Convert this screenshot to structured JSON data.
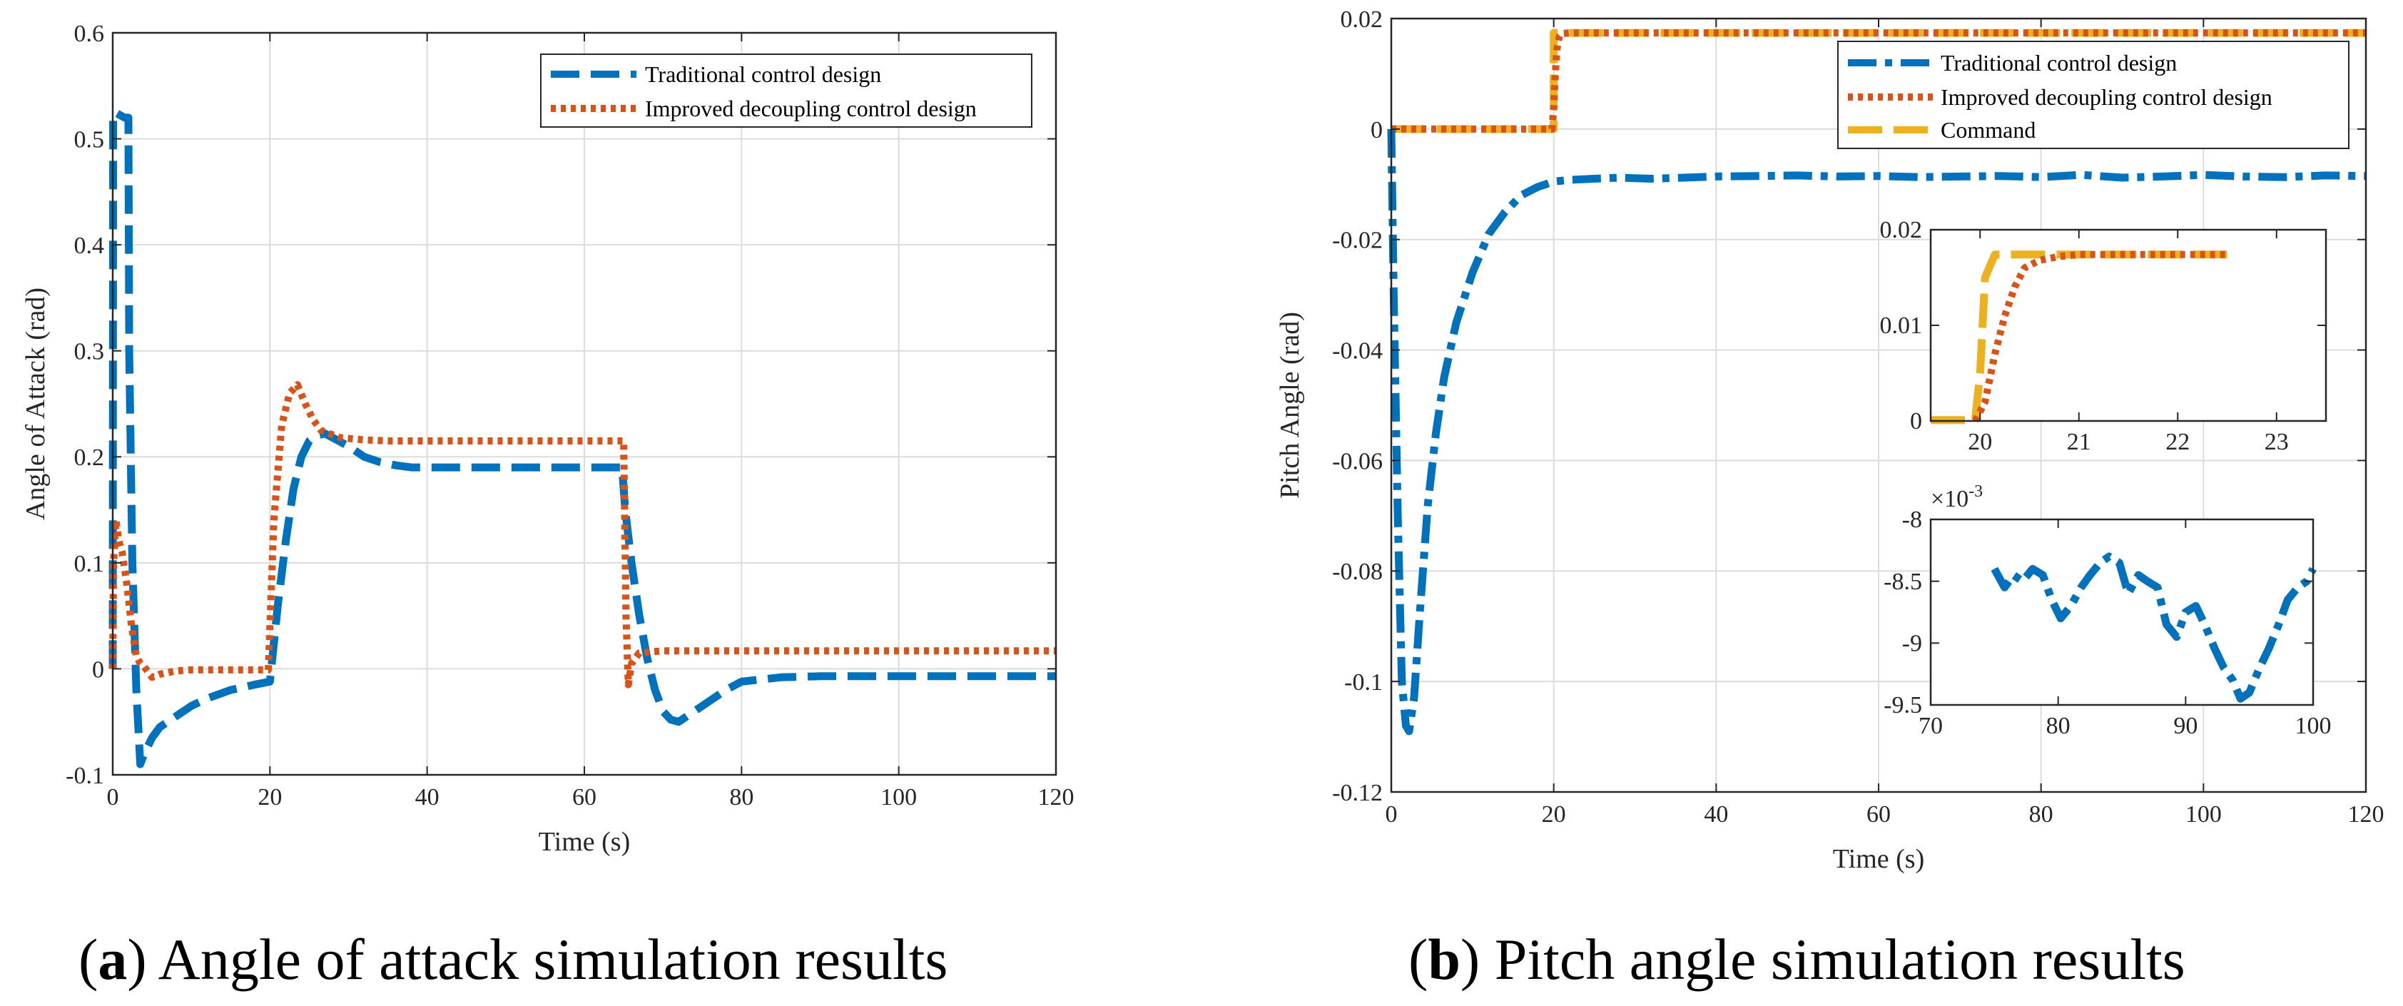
{
  "colors": {
    "traditional": "#0072BD",
    "improved": "#D95319",
    "command": "#EDB120"
  },
  "chart_data": [
    {
      "id": "a",
      "type": "line",
      "caption_letter": "a",
      "caption_text": ") Angle of attack simulation results",
      "caption_open": "(",
      "xlabel": "Time (s)",
      "ylabel": "Angle of Attack (rad)",
      "xlim": [
        0,
        120
      ],
      "ylim": [
        -0.1,
        0.6
      ],
      "xticks": [
        0,
        20,
        40,
        60,
        80,
        100,
        120
      ],
      "yticks": [
        -0.1,
        0,
        0.1,
        0.2,
        0.3,
        0.4,
        0.5,
        0.6
      ],
      "ytick_labels": [
        "-0.1",
        "0",
        "0.1",
        "0.2",
        "0.3",
        "0.4",
        "0.5",
        "0.6"
      ],
      "grid": true,
      "legend_position": "top-right",
      "series": [
        {
          "name": "Traditional control design",
          "style": "dashed-thick",
          "color": "traditional",
          "x": [
            0,
            0.05,
            0.3,
            1.5,
            2.0,
            2.1,
            2.5,
            3.0,
            3.5,
            4.0,
            5,
            6,
            8,
            10,
            12,
            15,
            18,
            20,
            21,
            22,
            23,
            24,
            25,
            26,
            27,
            28,
            30,
            32,
            34,
            36,
            38,
            40,
            45,
            50,
            55,
            60,
            64.8,
            65.2,
            66,
            67,
            68,
            69,
            70,
            71,
            72,
            73,
            75,
            78,
            80,
            85,
            90,
            100,
            110,
            120
          ],
          "y": [
            0,
            0.52,
            0.525,
            0.52,
            0.52,
            0.3,
            0.1,
            -0.02,
            -0.09,
            -0.08,
            -0.065,
            -0.055,
            -0.045,
            -0.035,
            -0.028,
            -0.02,
            -0.015,
            -0.012,
            0.06,
            0.12,
            0.17,
            0.2,
            0.215,
            0.22,
            0.222,
            0.218,
            0.21,
            0.2,
            0.195,
            0.192,
            0.19,
            0.19,
            0.19,
            0.19,
            0.19,
            0.19,
            0.19,
            0.15,
            0.1,
            0.05,
            0.01,
            -0.02,
            -0.04,
            -0.048,
            -0.05,
            -0.045,
            -0.035,
            -0.02,
            -0.012,
            -0.008,
            -0.007,
            -0.007,
            -0.007,
            -0.007
          ]
        },
        {
          "name": "Improved decoupling control design",
          "style": "dotted-thick",
          "color": "improved",
          "x": [
            0,
            0.1,
            0.4,
            0.8,
            1.2,
            1.8,
            2.4,
            3.0,
            3.5,
            4.0,
            5,
            6,
            8,
            10,
            15,
            19.8,
            20.5,
            21.5,
            22.5,
            23.5,
            24.5,
            25.5,
            26.5,
            27.5,
            29,
            32,
            35,
            40,
            50,
            60,
            65,
            65.3,
            65.6,
            66,
            67,
            70,
            80,
            90,
            100,
            110,
            120
          ],
          "y": [
            0,
            0.1,
            0.14,
            0.12,
            0.11,
            0.08,
            0.04,
            0.012,
            0.005,
            0.002,
            -0.008,
            -0.005,
            -0.002,
            -0.001,
            -0.001,
            -0.001,
            0.14,
            0.23,
            0.26,
            0.268,
            0.25,
            0.235,
            0.225,
            0.222,
            0.218,
            0.216,
            0.215,
            0.215,
            0.215,
            0.215,
            0.215,
            0.05,
            -0.015,
            0.005,
            0.015,
            0.017,
            0.017,
            0.017,
            0.017,
            0.017,
            0.017
          ]
        }
      ]
    },
    {
      "id": "b",
      "type": "line",
      "caption_letter": "b",
      "caption_text": ") Pitch angle simulation results",
      "caption_open": "(",
      "xlabel": "Time (s)",
      "ylabel": "Pitch Angle (rad)",
      "xlim": [
        0,
        120
      ],
      "ylim": [
        -0.12,
        0.02
      ],
      "xticks": [
        0,
        20,
        40,
        60,
        80,
        100,
        120
      ],
      "yticks": [
        -0.12,
        -0.1,
        -0.08,
        -0.06,
        -0.04,
        -0.02,
        0,
        0.02
      ],
      "ytick_labels": [
        "-0.12",
        "-0.1",
        "-0.08",
        "-0.06",
        "-0.04",
        "-0.02",
        "0",
        "0.02"
      ],
      "grid": true,
      "legend_position": "top-right",
      "series": [
        {
          "name": "Traditional control design",
          "style": "dashdot-thick",
          "color": "traditional",
          "x": [
            0,
            0.3,
            0.8,
            1.3,
            1.8,
            2.2,
            2.8,
            3.5,
            4.5,
            5.5,
            6.5,
            8,
            10,
            12,
            14,
            16,
            18,
            20,
            22,
            25,
            28,
            32,
            36,
            40,
            45,
            50,
            55,
            60,
            65,
            70,
            75,
            80,
            85,
            90,
            95,
            100,
            105,
            110,
            115,
            120
          ],
          "y": [
            0,
            -0.03,
            -0.07,
            -0.1,
            -0.108,
            -0.109,
            -0.103,
            -0.088,
            -0.068,
            -0.055,
            -0.045,
            -0.035,
            -0.026,
            -0.019,
            -0.015,
            -0.012,
            -0.0105,
            -0.0095,
            -0.0092,
            -0.009,
            -0.0088,
            -0.009,
            -0.0088,
            -0.0086,
            -0.0085,
            -0.0084,
            -0.0086,
            -0.0085,
            -0.0087,
            -0.0086,
            -0.0085,
            -0.0087,
            -0.0083,
            -0.0088,
            -0.0086,
            -0.0083,
            -0.0086,
            -0.0087,
            -0.0084,
            -0.0085
          ]
        },
        {
          "name": "Improved decoupling control design",
          "style": "dotted-thick",
          "color": "improved",
          "x": [
            0,
            19.8,
            20.0,
            20.2,
            20.4,
            20.7,
            21,
            22,
            25,
            40,
            60,
            80,
            100,
            120
          ],
          "y": [
            0,
            0,
            0.004,
            0.01,
            0.0145,
            0.0168,
            0.0173,
            0.0174,
            0.0174,
            0.0174,
            0.0174,
            0.0174,
            0.0174,
            0.0174
          ]
        },
        {
          "name": "Command",
          "style": "dashed-long",
          "color": "command",
          "x": [
            0,
            20,
            20,
            120
          ],
          "y": [
            0,
            0,
            0.0174,
            0.0174
          ]
        }
      ],
      "insets": [
        {
          "id": "b-inset-1",
          "xlim": [
            19.5,
            23.5
          ],
          "ylim": [
            0,
            0.02
          ],
          "xticks": [
            20,
            21,
            22,
            23
          ],
          "yticks": [
            0,
            0.01,
            0.02
          ],
          "ytick_labels": [
            "0",
            "0.01",
            "0.02"
          ],
          "series": [
            {
              "name": "Command",
              "color": "command",
              "style": "dashed-long",
              "x": [
                19.5,
                19.95,
                20.0,
                20.05,
                20.15,
                22.5
              ],
              "y": [
                0.0001,
                0.0001,
                0.005,
                0.015,
                0.0174,
                0.0174
              ]
            },
            {
              "name": "Improved decoupling control design",
              "color": "improved",
              "style": "dotted-thick",
              "x": [
                19.95,
                20.05,
                20.15,
                20.25,
                20.35,
                20.45,
                20.6,
                20.8,
                21.0,
                21.5,
                22.0,
                22.5
              ],
              "y": [
                0,
                0.002,
                0.007,
                0.011,
                0.014,
                0.016,
                0.0168,
                0.0172,
                0.0174,
                0.0174,
                0.0174,
                0.0174
              ]
            }
          ]
        },
        {
          "id": "b-inset-2",
          "xlim": [
            70,
            100
          ],
          "ylim": [
            -9.5,
            -8
          ],
          "xticks": [
            70,
            80,
            90,
            100
          ],
          "yticks": [
            -9.5,
            -9,
            -8.5,
            -8
          ],
          "ytick_labels": [
            "-9.5",
            "-9",
            "-8.5",
            "-8"
          ],
          "exponent_base": "×10",
          "exponent_power": "-3",
          "series": [
            {
              "name": "Traditional control design",
              "color": "traditional",
              "style": "dashdot-thick",
              "x": [
                75,
                75.8,
                76.5,
                77.2,
                78,
                78.8,
                79.5,
                80.2,
                81,
                81.8,
                82.5,
                83.3,
                84,
                84.8,
                85.5,
                86.3,
                87,
                87.8,
                88.5,
                89.3,
                90,
                90.8,
                91.5,
                92.3,
                93,
                93.7,
                94.3,
                95,
                95.8,
                96.5,
                97.3,
                98,
                98.8,
                99.5,
                100
              ],
              "y": [
                -8.4,
                -8.55,
                -8.45,
                -8.5,
                -8.4,
                -8.45,
                -8.65,
                -8.8,
                -8.7,
                -8.55,
                -8.45,
                -8.35,
                -8.3,
                -8.35,
                -8.6,
                -8.45,
                -8.5,
                -8.55,
                -8.85,
                -8.95,
                -8.75,
                -8.7,
                -8.85,
                -9.05,
                -9.2,
                -9.3,
                -9.45,
                -9.4,
                -9.2,
                -9.05,
                -8.85,
                -8.65,
                -8.55,
                -8.5,
                -8.4
              ]
            }
          ]
        }
      ]
    }
  ]
}
